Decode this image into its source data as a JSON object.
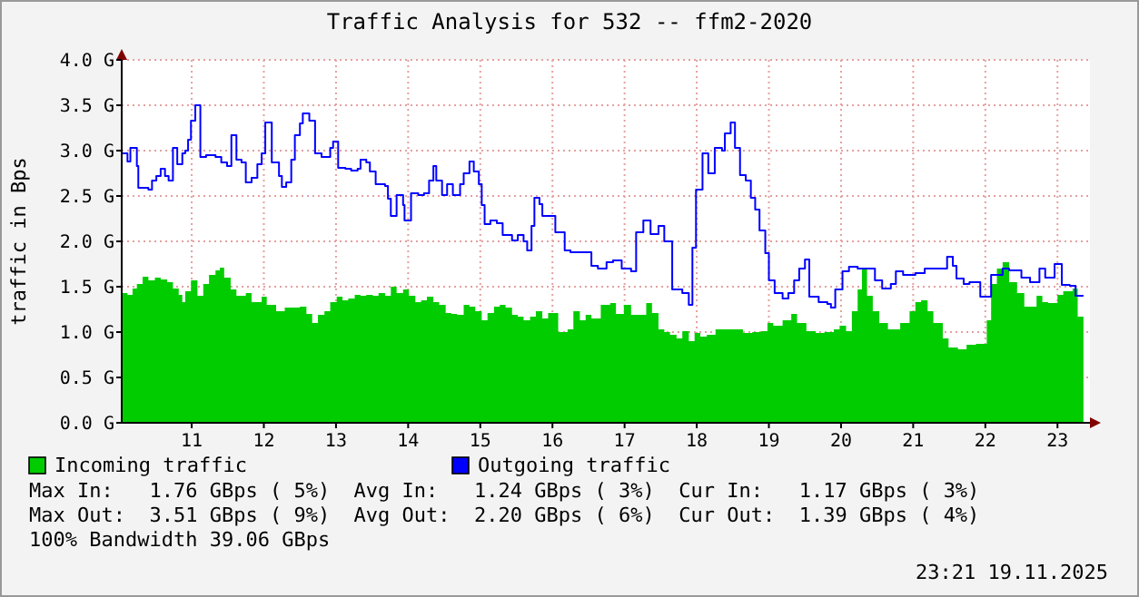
{
  "chart_data": {
    "type": "area",
    "title": "Traffic Analysis for 532 -- ffm2-2020",
    "ylabel": "traffic in Bps",
    "xlim": [
      10.03,
      23.45
    ],
    "xticks": [
      11,
      12,
      13,
      14,
      15,
      16,
      17,
      18,
      19,
      20,
      21,
      22,
      23
    ],
    "ylim": [
      0,
      4
    ],
    "yticks": [
      {
        "value": 0,
        "label": "0.0 G"
      },
      {
        "value": 0.5,
        "label": "0.5 G"
      },
      {
        "value": 1,
        "label": "1.0 G"
      },
      {
        "value": 1.5,
        "label": "1.5 G"
      },
      {
        "value": 2,
        "label": "2.0 G"
      },
      {
        "value": 2.5,
        "label": "2.5 G"
      },
      {
        "value": 3,
        "label": "3.0 G"
      },
      {
        "value": 3.5,
        "label": "3.5 G"
      },
      {
        "value": 4,
        "label": "4.0 G"
      }
    ],
    "grid": true,
    "legend": "bottom",
    "series": [
      {
        "name": "Incoming traffic",
        "color": "#00cc00",
        "x": [
          10.03,
          10.11,
          10.18,
          10.24,
          10.32,
          10.4,
          10.49,
          10.57,
          10.66,
          10.74,
          10.82,
          10.87,
          10.91,
          10.99,
          11.08,
          11.16,
          11.24,
          11.33,
          11.39,
          11.45,
          11.54,
          11.62,
          11.75,
          11.83,
          11.91,
          11.97,
          12.04,
          12.17,
          12.29,
          12.42,
          12.5,
          12.59,
          12.67,
          12.75,
          12.84,
          12.92,
          13.01,
          13.09,
          13.17,
          13.26,
          13.34,
          13.42,
          13.51,
          13.59,
          13.68,
          13.76,
          13.84,
          13.93,
          14.01,
          14.1,
          14.18,
          14.26,
          14.35,
          14.43,
          14.52,
          14.6,
          14.68,
          14.77,
          14.85,
          14.93,
          15.02,
          15.1,
          15.19,
          15.27,
          15.35,
          15.44,
          15.52,
          15.6,
          15.69,
          15.77,
          15.86,
          15.94,
          16.08,
          16.21,
          16.29,
          16.38,
          16.46,
          16.54,
          16.67,
          16.8,
          16.88,
          16.99,
          17.09,
          17.22,
          17.3,
          17.38,
          17.47,
          17.55,
          17.63,
          17.72,
          17.8,
          17.89,
          17.97,
          18.05,
          18.14,
          18.26,
          18.39,
          18.51,
          18.64,
          18.77,
          18.89,
          18.98,
          19.06,
          19.19,
          19.31,
          19.39,
          19.52,
          19.65,
          19.77,
          19.9,
          19.98,
          20.07,
          20.15,
          20.23,
          20.29,
          20.36,
          20.44,
          20.53,
          20.65,
          20.74,
          20.82,
          20.95,
          21.03,
          21.11,
          21.2,
          21.28,
          21.41,
          21.49,
          21.62,
          21.74,
          21.87,
          21.95,
          22.02,
          22.08,
          22.16,
          22.24,
          22.33,
          22.44,
          22.54,
          22.62,
          22.71,
          22.79,
          22.87,
          23.0,
          23.08,
          23.21,
          23.28,
          23.36
        ],
        "values": [
          1.43,
          1.41,
          1.48,
          1.53,
          1.61,
          1.57,
          1.6,
          1.58,
          1.55,
          1.48,
          1.41,
          1.33,
          1.45,
          1.57,
          1.4,
          1.53,
          1.63,
          1.68,
          1.71,
          1.6,
          1.47,
          1.4,
          1.43,
          1.33,
          1.33,
          1.39,
          1.3,
          1.23,
          1.27,
          1.27,
          1.28,
          1.2,
          1.1,
          1.19,
          1.23,
          1.33,
          1.39,
          1.35,
          1.37,
          1.41,
          1.4,
          1.41,
          1.4,
          1.43,
          1.4,
          1.5,
          1.43,
          1.47,
          1.4,
          1.33,
          1.35,
          1.39,
          1.33,
          1.3,
          1.21,
          1.2,
          1.19,
          1.3,
          1.28,
          1.23,
          1.13,
          1.21,
          1.28,
          1.3,
          1.27,
          1.19,
          1.17,
          1.13,
          1.17,
          1.23,
          1.15,
          1.21,
          1.0,
          1.03,
          1.23,
          1.13,
          1.19,
          1.15,
          1.3,
          1.32,
          1.2,
          1.3,
          1.19,
          1.19,
          1.32,
          1.21,
          1.03,
          1.0,
          0.97,
          0.93,
          1.01,
          0.9,
          0.99,
          0.95,
          0.97,
          1.03,
          1.03,
          1.03,
          0.99,
          1.0,
          1.01,
          1.1,
          1.07,
          1.13,
          1.2,
          1.1,
          1.01,
          0.99,
          1.0,
          1.03,
          1.07,
          1.01,
          1.23,
          1.47,
          1.7,
          1.4,
          1.23,
          1.1,
          1.03,
          1.03,
          1.1,
          1.23,
          1.33,
          1.35,
          1.23,
          1.1,
          0.93,
          0.83,
          0.81,
          0.86,
          0.87,
          0.87,
          1.13,
          1.53,
          1.7,
          1.77,
          1.55,
          1.43,
          1.28,
          1.28,
          1.4,
          1.33,
          1.32,
          1.41,
          1.45,
          1.48,
          1.17,
          1.17
        ]
      },
      {
        "name": "Outgoing traffic",
        "type": "step",
        "color": "#0000ff",
        "x": [
          10.03,
          10.11,
          10.15,
          10.24,
          10.26,
          10.4,
          10.45,
          10.51,
          10.57,
          10.63,
          10.68,
          10.74,
          10.8,
          10.87,
          10.91,
          10.95,
          10.99,
          11.05,
          11.12,
          11.2,
          11.33,
          11.41,
          11.49,
          11.55,
          11.62,
          11.69,
          11.75,
          11.83,
          11.91,
          11.97,
          12.02,
          12.11,
          12.21,
          12.25,
          12.31,
          12.38,
          12.43,
          12.5,
          12.54,
          12.63,
          12.71,
          12.8,
          12.88,
          12.92,
          12.96,
          13.03,
          13.13,
          13.21,
          13.3,
          13.34,
          13.42,
          13.47,
          13.55,
          13.68,
          13.72,
          13.76,
          13.84,
          13.93,
          13.95,
          14.04,
          14.14,
          14.22,
          14.29,
          14.35,
          14.39,
          14.47,
          14.54,
          14.62,
          14.72,
          14.77,
          14.85,
          14.91,
          14.98,
          15.02,
          15.06,
          15.14,
          15.23,
          15.31,
          15.44,
          15.52,
          15.6,
          15.65,
          15.71,
          15.75,
          15.82,
          15.86,
          16.04,
          16.17,
          16.25,
          16.54,
          16.63,
          16.75,
          16.84,
          16.96,
          17.09,
          17.16,
          17.26,
          17.36,
          17.47,
          17.55,
          17.66,
          17.8,
          17.89,
          17.94,
          17.99,
          18.08,
          18.16,
          18.25,
          18.35,
          18.39,
          18.47,
          18.53,
          18.6,
          18.68,
          18.75,
          18.81,
          18.87,
          18.95,
          19.0,
          19.08,
          19.19,
          19.27,
          19.35,
          19.42,
          19.5,
          19.56,
          19.69,
          19.81,
          19.86,
          19.92,
          20.02,
          20.11,
          20.23,
          20.4,
          20.47,
          20.57,
          20.69,
          20.76,
          20.86,
          21.03,
          21.16,
          21.45,
          21.47,
          21.55,
          21.6,
          21.7,
          21.78,
          21.93,
          22.08,
          22.24,
          22.33,
          22.5,
          22.62,
          22.75,
          22.83,
          22.96,
          23.06,
          23.17,
          23.25,
          23.36
        ],
        "values": [
          2.97,
          2.88,
          3.03,
          2.83,
          2.59,
          2.57,
          2.67,
          2.72,
          2.8,
          2.72,
          2.67,
          3.03,
          2.85,
          2.97,
          3.0,
          3.12,
          3.33,
          3.5,
          2.93,
          2.95,
          2.93,
          2.87,
          2.83,
          3.17,
          2.9,
          2.87,
          2.65,
          2.7,
          2.85,
          2.97,
          3.31,
          2.87,
          2.72,
          2.6,
          2.65,
          2.9,
          3.17,
          3.3,
          3.41,
          3.33,
          2.97,
          2.93,
          2.93,
          3.03,
          3.1,
          2.81,
          2.8,
          2.78,
          2.8,
          2.9,
          2.87,
          2.77,
          2.63,
          2.61,
          2.47,
          2.28,
          2.51,
          2.4,
          2.23,
          2.53,
          2.51,
          2.53,
          2.67,
          2.83,
          2.67,
          2.51,
          2.63,
          2.51,
          2.63,
          2.75,
          2.88,
          2.77,
          2.63,
          2.4,
          2.19,
          2.23,
          2.2,
          2.07,
          2.01,
          2.07,
          2.0,
          1.9,
          2.17,
          2.48,
          2.41,
          2.28,
          2.1,
          1.9,
          1.88,
          1.73,
          1.7,
          1.77,
          1.79,
          1.7,
          1.67,
          2.1,
          2.23,
          2.08,
          2.17,
          2.0,
          1.47,
          1.43,
          1.3,
          1.93,
          2.57,
          2.97,
          2.75,
          3.03,
          3.0,
          3.19,
          3.31,
          3.03,
          2.73,
          2.67,
          2.48,
          2.35,
          2.12,
          1.87,
          1.57,
          1.43,
          1.37,
          1.43,
          1.57,
          1.7,
          1.8,
          1.39,
          1.33,
          1.31,
          1.27,
          1.47,
          1.67,
          1.72,
          1.7,
          1.7,
          1.57,
          1.48,
          1.53,
          1.67,
          1.63,
          1.65,
          1.7,
          1.7,
          1.83,
          1.73,
          1.59,
          1.53,
          1.55,
          1.39,
          1.63,
          1.7,
          1.68,
          1.6,
          1.55,
          1.7,
          1.6,
          1.75,
          1.52,
          1.51,
          1.4,
          1.4
        ]
      }
    ],
    "annotations": [
      "Max In:   1.76 GBps ( 5%)  Avg In:   1.24 GBps ( 3%)  Cur In:   1.17 GBps ( 3%)",
      "Max Out:  3.51 GBps ( 9%)  Avg Out:  2.20 GBps ( 6%)  Cur Out:  1.39 GBps ( 4%)",
      "100% Bandwidth 39.06 GBps",
      "23:21 19.11.2025"
    ]
  }
}
